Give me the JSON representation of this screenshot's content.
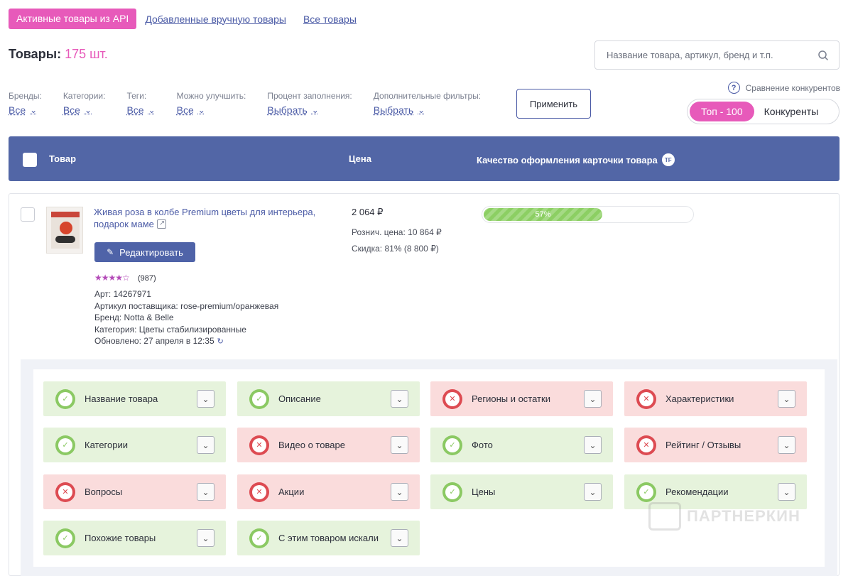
{
  "tabs": {
    "active": "Активные товары из API",
    "manual": "Добавленные вручную товары",
    "all": "Все товары"
  },
  "header": {
    "title": "Товары:",
    "count": "175 шт.",
    "search_placeholder": "Название товара, артикул, бренд и т.п."
  },
  "filters": [
    {
      "label": "Бренды:",
      "value": "Все"
    },
    {
      "label": "Категории:",
      "value": "Все"
    },
    {
      "label": "Теги:",
      "value": "Все"
    },
    {
      "label": "Можно улучшить:",
      "value": "Все"
    },
    {
      "label": "Процент заполнения:",
      "value": "Выбрать"
    },
    {
      "label": "Дополнительные фильтры:",
      "value": "Выбрать"
    }
  ],
  "apply_label": "Применить",
  "compare": {
    "help": "?",
    "label": "Сравнение конкурентов",
    "toggle_on": "Топ - 100",
    "toggle_off": "Конкуренты"
  },
  "table_header": {
    "product": "Товар",
    "price": "Цена",
    "quality": "Качество оформления карточки товара",
    "quality_badge": "TF"
  },
  "product": {
    "title": "Живая роза в колбе Premium цветы для интерьера, подарок маме",
    "edit_label": "Редактировать",
    "stars": "★★★★☆",
    "rating": 4,
    "reviews": "(987)",
    "art": "Арт: 14267971",
    "supplier_art": "Артикул поставщика: rose-premium/оранжевая",
    "brand": "Бренд: Notta & Belle",
    "category": "Категория: Цветы стабилизированные",
    "updated": "Обновлено:  27 апреля в 12:35",
    "price": "2 064 ₽",
    "retail": "Рознич. цена: 10 864 ₽",
    "discount": "Скидка: 81% (8 800 ₽)",
    "quality_percent": 57,
    "quality_label": "57%"
  },
  "checks": [
    {
      "label": "Название товара",
      "status": "ok"
    },
    {
      "label": "Описание",
      "status": "ok"
    },
    {
      "label": "Регионы и остатки",
      "status": "bad"
    },
    {
      "label": "Характеристики",
      "status": "bad"
    },
    {
      "label": "Категории",
      "status": "ok"
    },
    {
      "label": "Видео о товаре",
      "status": "bad"
    },
    {
      "label": "Фото",
      "status": "ok"
    },
    {
      "label": "Рейтинг / Отзывы",
      "status": "bad"
    },
    {
      "label": "Вопросы",
      "status": "bad"
    },
    {
      "label": "Акции",
      "status": "bad"
    },
    {
      "label": "Цены",
      "status": "ok"
    },
    {
      "label": "Рекомендации",
      "status": "ok"
    },
    {
      "label": "Похожие товары",
      "status": "ok"
    },
    {
      "label": "С этим товаром искали",
      "status": "ok"
    }
  ],
  "watermark": "ПАРТНЕРКИН",
  "colors": {
    "accent": "#e75aba",
    "header": "#5266a6",
    "ok": "#8bc963",
    "bad": "#dd4b52"
  }
}
